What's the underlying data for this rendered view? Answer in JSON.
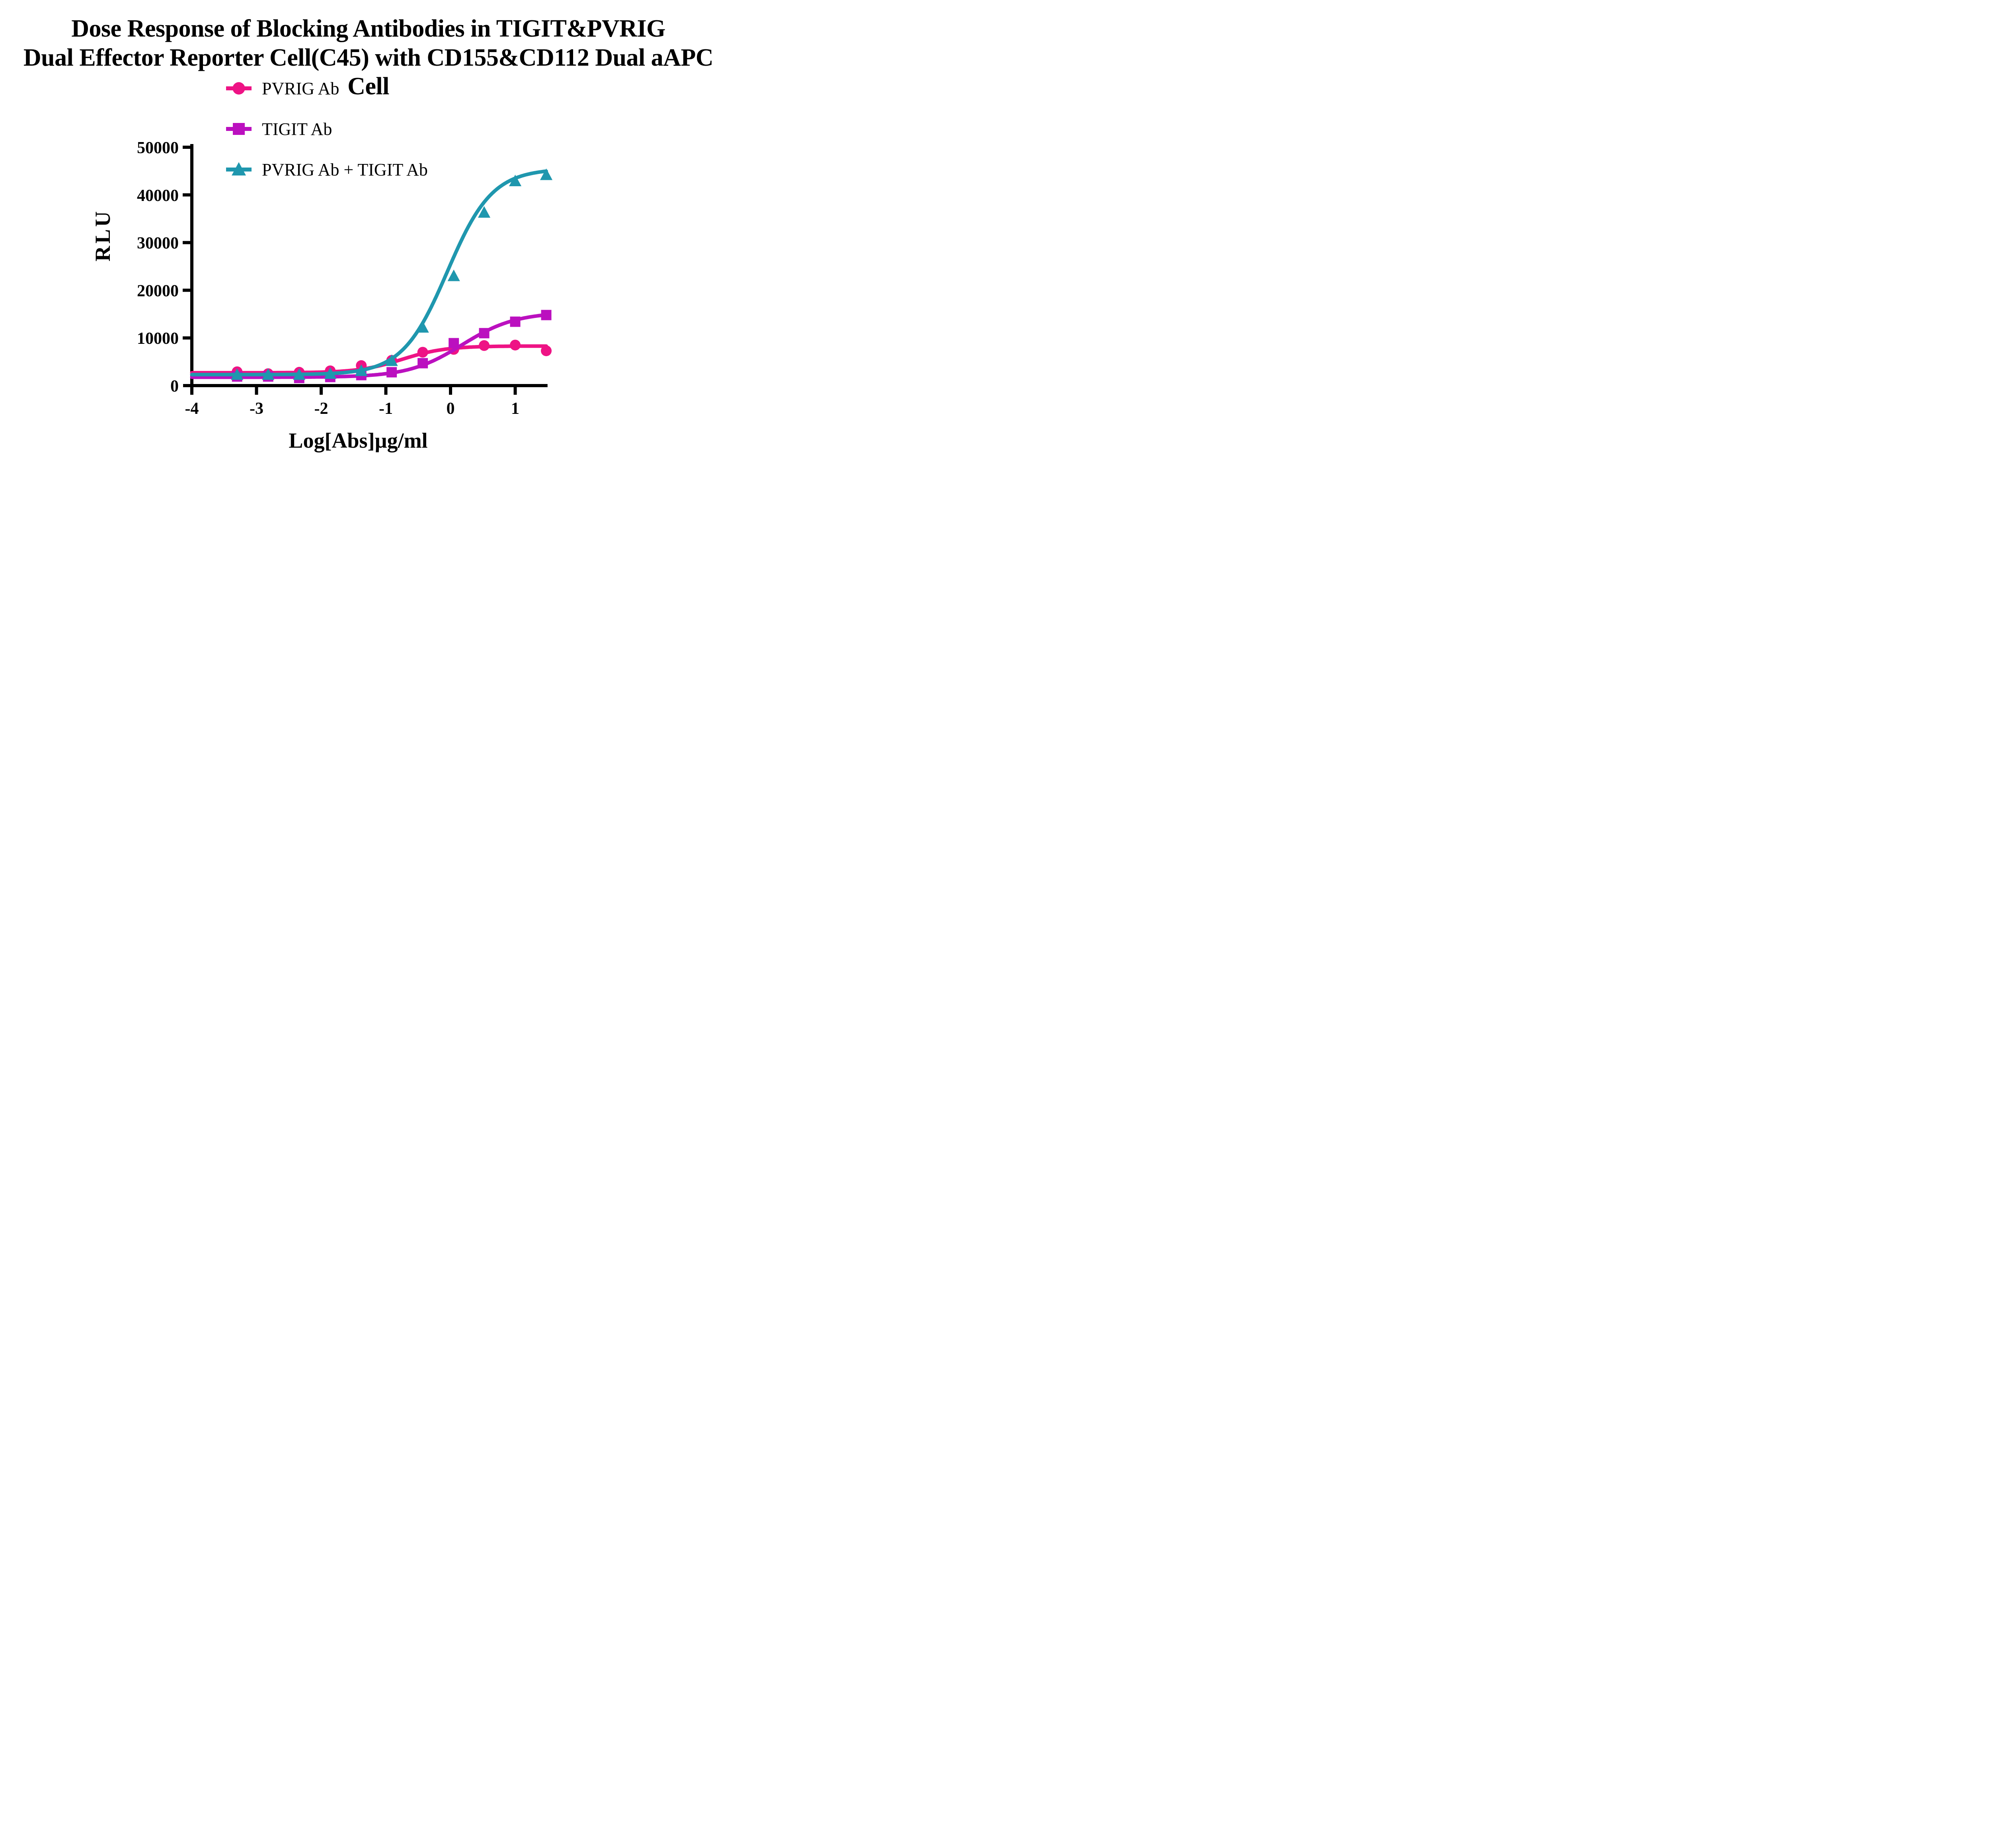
{
  "figure": {
    "background": "#FFFFFF"
  },
  "title": {
    "line1": "Dose Response of Blocking Antibodies in TIGIT&PVRIG",
    "line2": "Dual Effector Reporter Cell(C45) with CD155&CD112 Dual aAPC Cell"
  },
  "legend": {
    "items": [
      {
        "label": "PVRIG Ab",
        "marker": "circle",
        "color": "#EE1385"
      },
      {
        "label": "TIGIT Ab",
        "marker": "square",
        "color": "#BB10BF"
      },
      {
        "label": "PVRIG Ab + TIGIT Ab",
        "marker": "triangle",
        "color": "#1F97AE"
      }
    ]
  },
  "chart_data": {
    "type": "line",
    "title": "Dose Response of Blocking Antibodies in TIGIT&PVRIG Dual Effector Reporter Cell(C45) with CD155&CD112 Dual aAPC Cell",
    "xlabel": "Log[Abs]µg/ml",
    "ylabel": "RLU",
    "xlim": [
      -4,
      1.5
    ],
    "ylim": [
      0,
      50000
    ],
    "xticks": [
      -4,
      -3,
      -2,
      -1,
      0,
      1
    ],
    "yticks": [
      0,
      10000,
      20000,
      30000,
      40000,
      50000
    ],
    "grid": false,
    "legend_position": "top-left-inside",
    "x": [
      -3.3,
      -2.82,
      -2.34,
      -1.86,
      -1.38,
      -0.91,
      -0.43,
      0.05,
      0.52,
      1.0,
      1.48
    ],
    "series": [
      {
        "name": "PVRIG Ab",
        "marker": "circle",
        "color": "#EE1385",
        "values": [
          2900,
          2500,
          2800,
          3100,
          4200,
          5300,
          7000,
          7600,
          8400,
          8500,
          7300
        ],
        "fit_4pl": {
          "bottom": 2700,
          "top": 8300,
          "logEC50": -0.75,
          "hill": 1.3
        }
      },
      {
        "name": "TIGIT Ab",
        "marker": "square",
        "color": "#BB10BF",
        "values": [
          1900,
          1900,
          1600,
          1800,
          2200,
          2800,
          4700,
          8900,
          11000,
          13400,
          14800
        ],
        "fit_4pl": {
          "bottom": 1750,
          "top": 15400,
          "logEC50": 0.18,
          "hill": 1.05
        }
      },
      {
        "name": "PVRIG Ab + TIGIT Ab",
        "marker": "triangle",
        "color": "#1F97AE",
        "values": [
          2300,
          2300,
          2300,
          2500,
          3100,
          5200,
          12200,
          23000,
          36300,
          42900,
          44200
        ],
        "fit_4pl": {
          "bottom": 2300,
          "top": 45500,
          "logEC50": -0.05,
          "hill": 1.25
        }
      }
    ]
  }
}
